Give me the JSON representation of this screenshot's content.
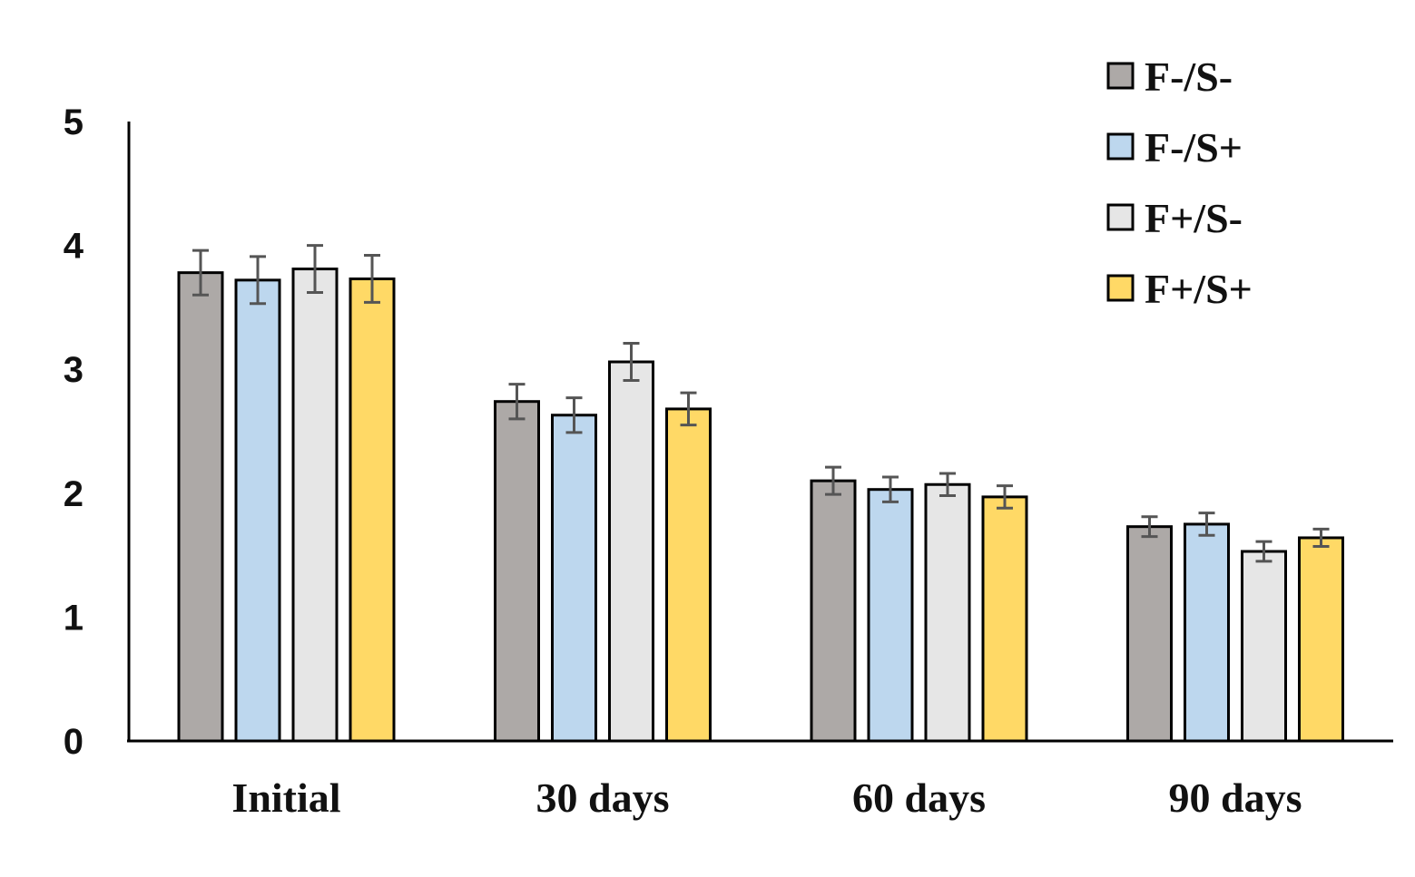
{
  "chart_data": {
    "type": "bar",
    "title": "",
    "xlabel": "",
    "ylabel": "",
    "ylim": [
      0,
      5
    ],
    "yticks": [
      "0",
      "1",
      "2",
      "3",
      "4",
      "5"
    ],
    "categories": [
      "Initial",
      "30 days",
      "60 days",
      "90 days"
    ],
    "legend_position": "top-right",
    "error_bars": true,
    "series": [
      {
        "name": "F-/S-",
        "color": "#ADA9A7",
        "values": [
          3.78,
          2.74,
          2.1,
          1.73
        ],
        "errors": [
          0.18,
          0.14,
          0.11,
          0.08
        ]
      },
      {
        "name": "F-/S+",
        "color": "#BDD7EE",
        "values": [
          3.72,
          2.63,
          2.03,
          1.75
        ],
        "errors": [
          0.19,
          0.14,
          0.1,
          0.09
        ]
      },
      {
        "name": "F+/S-",
        "color": "#E6E6E6",
        "values": [
          3.81,
          3.06,
          2.07,
          1.53
        ],
        "errors": [
          0.19,
          0.15,
          0.09,
          0.08
        ]
      },
      {
        "name": "F+/S+",
        "color": "#FFD966",
        "values": [
          3.73,
          2.68,
          1.97,
          1.64
        ],
        "errors": [
          0.19,
          0.13,
          0.09,
          0.07
        ]
      }
    ]
  }
}
